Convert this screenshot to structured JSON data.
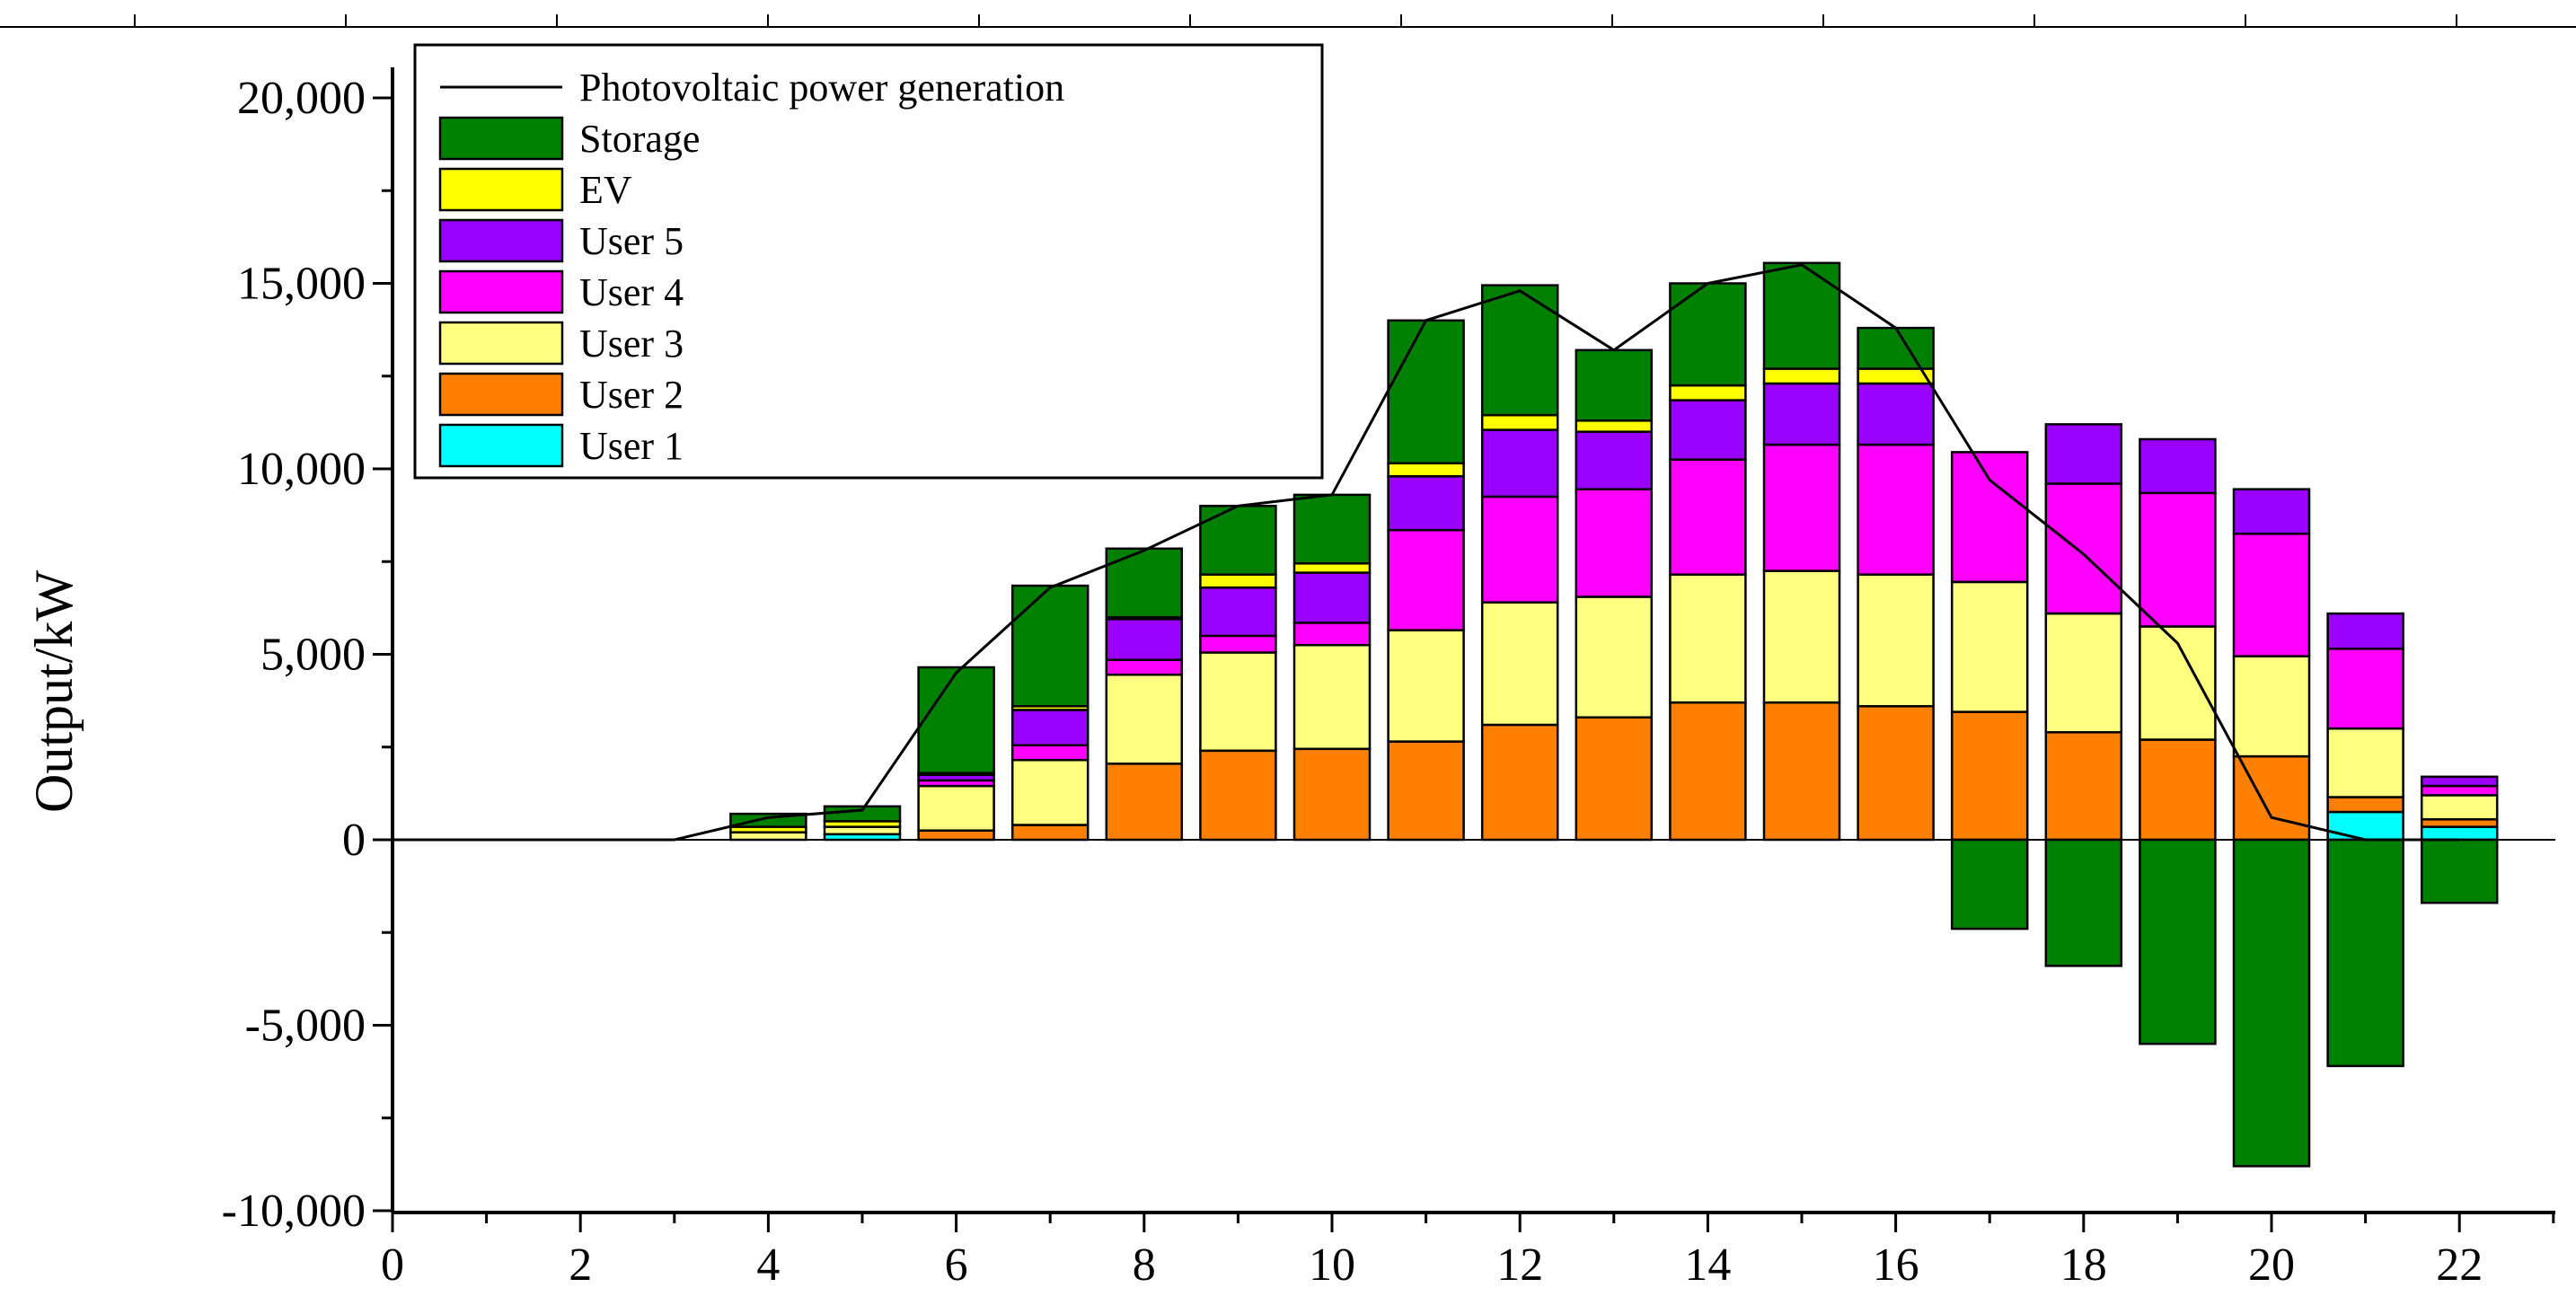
{
  "chart_data": {
    "type": "bar",
    "subtype": "stacked-bar-with-line",
    "title": "",
    "xlabel": "",
    "ylabel": "Output/kW",
    "xlim": [
      0,
      23
    ],
    "ylim": [
      -10000,
      20000
    ],
    "x_ticks": [
      "0",
      "2",
      "4",
      "6",
      "8",
      "10",
      "12",
      "14",
      "16",
      "18",
      "20",
      "22"
    ],
    "y_ticks": [
      "20,000",
      "15,000",
      "10,000",
      "5,000",
      "0",
      "-5,000",
      "-10,000"
    ],
    "hours": [
      4,
      5,
      6,
      7,
      8,
      9,
      10,
      11,
      12,
      13,
      14,
      15,
      16,
      17,
      18,
      19,
      20,
      21,
      22
    ],
    "series": [
      {
        "name": "User 1",
        "color": "#00ffff",
        "values": [
          0,
          150,
          0,
          0,
          0,
          0,
          0,
          0,
          0,
          0,
          0,
          0,
          0,
          0,
          0,
          0,
          0,
          750,
          350
        ]
      },
      {
        "name": "User 2",
        "color": "#ff8000",
        "values": [
          0,
          0,
          250,
          400,
          2050,
          2400,
          2450,
          2650,
          3100,
          3300,
          3700,
          3700,
          3600,
          3450,
          2900,
          2700,
          2250,
          400,
          200
        ]
      },
      {
        "name": "User 3",
        "color": "#ffff80",
        "values": [
          200,
          200,
          1200,
          1750,
          2400,
          2650,
          2800,
          3000,
          3300,
          3250,
          3450,
          3550,
          3550,
          3500,
          3200,
          3050,
          2700,
          1850,
          650
        ]
      },
      {
        "name": "User 4",
        "color": "#ff00ff",
        "values": [
          0,
          0,
          150,
          400,
          400,
          450,
          600,
          2700,
          2850,
          2900,
          3100,
          3400,
          3500,
          3500,
          3500,
          3600,
          3300,
          2150,
          250
        ]
      },
      {
        "name": "User 5",
        "color": "#9900ff",
        "values": [
          0,
          0,
          150,
          950,
          1100,
          1300,
          1350,
          1450,
          1800,
          1550,
          1600,
          1650,
          1650,
          0,
          1600,
          1450,
          1200,
          950,
          250
        ]
      },
      {
        "name": "EV",
        "color": "#ffff00",
        "values": [
          150,
          150,
          50,
          100,
          50,
          350,
          250,
          350,
          400,
          300,
          400,
          400,
          400,
          0,
          0,
          0,
          0,
          0,
          0
        ]
      },
      {
        "name": "Storage",
        "color": "#008000",
        "values": [
          350,
          400,
          2850,
          3250,
          1850,
          1850,
          1850,
          3850,
          3500,
          1900,
          2750,
          2850,
          1100,
          -2400,
          -3400,
          -5500,
          -8800,
          -6100,
          -1700
        ]
      }
    ],
    "stack_top_series_for_hour_17": "User 4",
    "line": {
      "name": "Photovoltaic power generation",
      "color": "#000000",
      "x": [
        0,
        1,
        2,
        3,
        4,
        5,
        6,
        7,
        8,
        9,
        10,
        11,
        12,
        13,
        14,
        15,
        16,
        17,
        18,
        19,
        20,
        21,
        22
      ],
      "y": [
        0,
        0,
        0,
        0,
        600,
        800,
        4500,
        6800,
        7800,
        9000,
        9300,
        14000,
        14800,
        13200,
        15000,
        15500,
        13800,
        9700,
        7700,
        5300,
        600,
        0,
        0
      ]
    },
    "legend": {
      "position": "top-left",
      "entries": [
        "Photovoltaic power generation",
        "Storage",
        "EV",
        "User 5",
        "User 4",
        "User 3",
        "User 2",
        "User 1"
      ]
    }
  }
}
